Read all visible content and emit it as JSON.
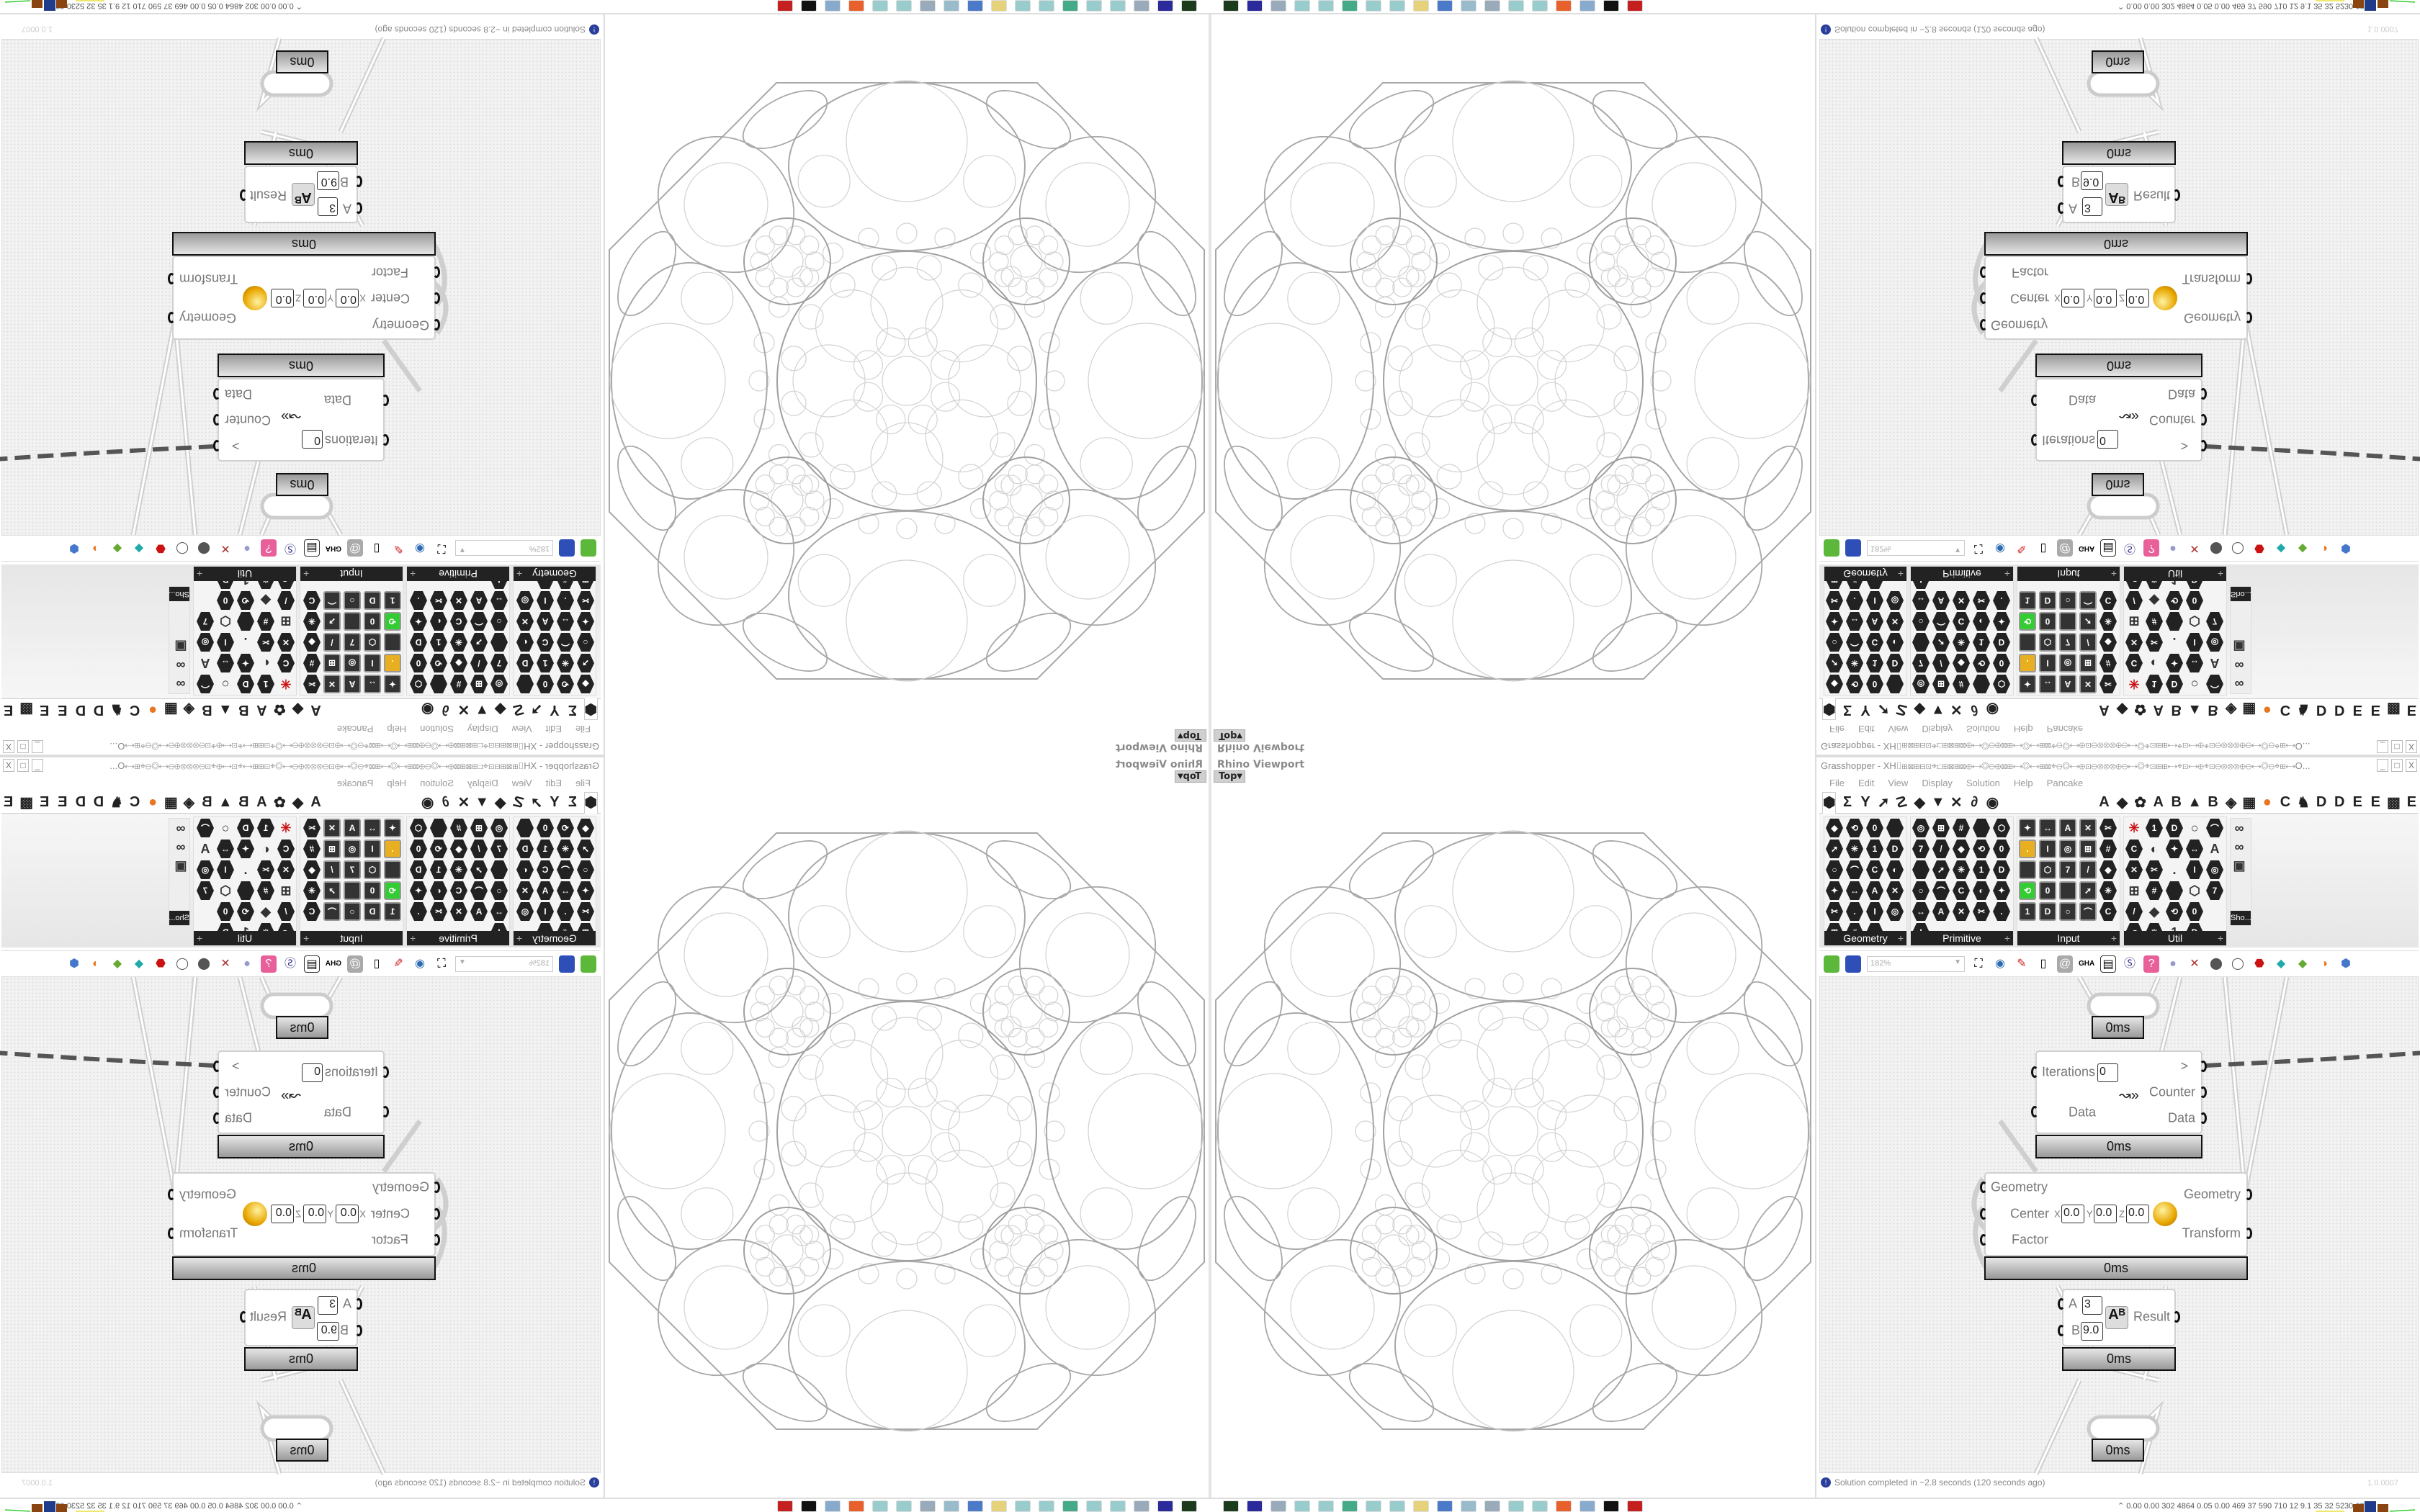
{
  "viewport": {
    "label": "Rhino Viewport",
    "view": "Top"
  },
  "grasshopper": {
    "title": "Grasshopper - XH⌷⊞⊠⊞⊟⊡⌖⊏⊞⊠⊞⊠⊕⟷◎⊖⊕⊠⊞⟷◎⟷⊞⊠⌖⊖◎⟷⊕⊡⊖⊗⊗⊗⊕⊖⟷◎⌖⊡⊞⊞⟷⌖⊡⟷⊕⌖⊡⊖⊗⊗⊗⊕⊖⟷◎⊖⌖⊞⟷O...",
    "window_buttons": [
      "_",
      "□",
      "X"
    ],
    "menu": [
      "File",
      "Edit",
      "View",
      "Display",
      "Solution",
      "Help",
      "Pancake"
    ],
    "tab_icons": [
      {
        "name": "params-tab",
        "glyph": "⬢"
      },
      {
        "name": "maths-tab",
        "glyph": "Σ"
      },
      {
        "name": "sets-tab",
        "glyph": "Y"
      },
      {
        "name": "vector-tab",
        "glyph": "➚"
      },
      {
        "name": "curve-tab",
        "glyph": "☡"
      },
      {
        "name": "surface-tab",
        "glyph": "◆"
      },
      {
        "name": "mesh-tab",
        "glyph": "▼"
      },
      {
        "name": "intersect-tab",
        "glyph": "✕"
      },
      {
        "name": "transform-tab",
        "glyph": "∂"
      },
      {
        "name": "display-tab",
        "glyph": "◉"
      },
      {
        "name": "plugin-a-tab",
        "glyph": "A"
      },
      {
        "name": "leaf-tab",
        "glyph": "◆"
      },
      {
        "name": "gear-tab",
        "glyph": "✿"
      },
      {
        "name": "plugin-a2-tab",
        "glyph": "A"
      },
      {
        "name": "plugin-b-tab",
        "glyph": "B"
      },
      {
        "name": "terrain-tab",
        "glyph": "▲"
      },
      {
        "name": "plugin-b2-tab",
        "glyph": "B"
      },
      {
        "name": "shield-tab",
        "glyph": "◈"
      },
      {
        "name": "grid-tab",
        "glyph": "▦"
      },
      {
        "name": "orange-circle-tab",
        "glyph": "●"
      },
      {
        "name": "plugin-c-tab",
        "glyph": "C"
      },
      {
        "name": "rooster-tab",
        "glyph": "♞"
      },
      {
        "name": "plugin-d-tab",
        "glyph": "D"
      },
      {
        "name": "plugin-d2-tab",
        "glyph": "D"
      },
      {
        "name": "plugin-e-tab",
        "glyph": "E"
      },
      {
        "name": "plugin-e2-tab",
        "glyph": "E"
      },
      {
        "name": "dotted-square-tab",
        "glyph": "▩"
      },
      {
        "name": "plugin-e3-tab",
        "glyph": "E"
      }
    ],
    "panels": [
      {
        "label": "Geometry",
        "count": 23,
        "columns": 4
      },
      {
        "label": "Primitive",
        "count": 26,
        "columns": 5
      },
      {
        "label": "Input",
        "count": 25,
        "columns": 5
      },
      {
        "label": "Util",
        "count": 29,
        "columns": 5
      }
    ],
    "extra_panel_label": "Sho...",
    "zoom": "182%",
    "components": {
      "top_node": {
        "time": "0ms"
      },
      "loop": {
        "iterations_label": "Iterations",
        "iterations_value": "0",
        "data_in": "Data",
        "next": ">",
        "counter": "Counter",
        "data_out": "Data",
        "time": "0ms"
      },
      "scale": {
        "geometry_in": "Geometry",
        "center": "Center",
        "x_label": "X",
        "x": "0.0",
        "y_label": "Y",
        "y": "0.0",
        "z_label": "Z",
        "z": "0.0",
        "factor": "Factor",
        "geometry_out": "Geometry",
        "transform": "Transform",
        "time": "0ms"
      },
      "power": {
        "a_label": "A",
        "a": "3",
        "b_label": "B",
        "b": "9.0",
        "result": "Result",
        "time": "0ms"
      },
      "bottom_node": {
        "time": "0ms"
      }
    },
    "status": "Solution completed in ~2.8 seconds (120 seconds ago)",
    "version": "1.0.0007"
  },
  "taskbar": {
    "icons": [
      "terminal",
      "floppy-64",
      "notepad",
      "notepad",
      "notepad",
      "monitor",
      "notepad",
      "notepad",
      "folder",
      "computer",
      "notepad",
      "notepad",
      "notepad",
      "notepad",
      "firefox",
      "notepad",
      "inkscape",
      "red-app"
    ],
    "icon_colors": [
      "#1c3a1c",
      "#2a2a9a",
      "#9ab",
      "#9cc",
      "#9cc",
      "#4a8",
      "#9cc",
      "#9cc",
      "#e6d27a",
      "#4a7ac8",
      "#9bc",
      "#9ab",
      "#9cc",
      "#9cc",
      "#e8602c",
      "#8ac",
      "#111",
      "#c42020"
    ],
    "stats": "0.00 0.00 302 4864 0.05 0.00 469 37 590 710 12 9.1 35 32 5230 6823"
  },
  "colors": {
    "accent_orange": "#e87722",
    "wire_gray": "#c8c8c8",
    "geometry_stroke": "#a8a8a8"
  }
}
